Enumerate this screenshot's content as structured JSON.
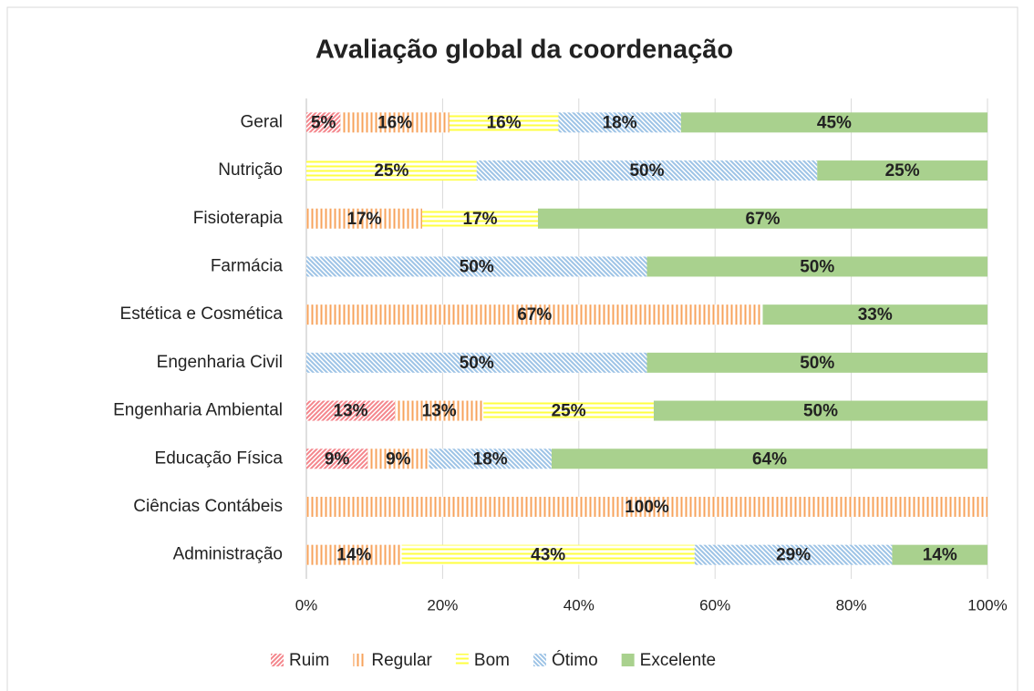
{
  "chart_data": {
    "type": "stacked-bar",
    "orientation": "horizontal",
    "title": "Avaliação global da coordenação",
    "categories": [
      "Geral",
      "Nutrição",
      "Fisioterapia",
      "Farmácia",
      "Estética e Cosmética",
      "Engenharia Civil",
      "Engenharia Ambiental",
      "Educação Física",
      "Ciências Contábeis",
      "Administração"
    ],
    "series": [
      {
        "name": "Ruim",
        "color": "#f4868c",
        "pattern": "diagonal-up",
        "values": [
          5,
          null,
          null,
          null,
          null,
          null,
          13,
          9,
          null,
          null
        ],
        "value_labels": [
          "5%",
          null,
          null,
          null,
          null,
          null,
          "13%",
          "9%",
          null,
          null
        ]
      },
      {
        "name": "Regular",
        "color": "#f7a35c",
        "pattern": "vertical",
        "values": [
          16,
          null,
          17,
          null,
          67,
          null,
          13,
          9,
          100,
          14
        ],
        "value_labels": [
          "16%",
          null,
          "17%",
          null,
          "67%",
          null,
          "13%",
          "9%",
          "100%",
          "14%"
        ]
      },
      {
        "name": "Bom",
        "color": "#ffff40",
        "pattern": "horizontal",
        "values": [
          16,
          25,
          17,
          null,
          null,
          null,
          25,
          null,
          null,
          43
        ],
        "value_labels": [
          "16%",
          "25%",
          "17%",
          null,
          null,
          null,
          "25%",
          null,
          null,
          "43%"
        ]
      },
      {
        "name": "Ótimo",
        "color": "#9dc3e6",
        "pattern": "diagonal-down",
        "values": [
          18,
          50,
          null,
          50,
          null,
          50,
          null,
          18,
          null,
          29
        ],
        "value_labels": [
          "18%",
          "50%",
          null,
          "50%",
          null,
          "50%",
          null,
          "18%",
          null,
          "29%"
        ]
      },
      {
        "name": "Excelente",
        "color": "#a9d18e",
        "pattern": "solid",
        "values": [
          45,
          25,
          67,
          50,
          33,
          50,
          50,
          64,
          null,
          14
        ],
        "value_labels": [
          "45%",
          "25%",
          "67%",
          "50%",
          "33%",
          "50%",
          "50%",
          "64%",
          null,
          "14%"
        ]
      }
    ],
    "xlim": [
      0,
      100
    ],
    "xticks": [
      {
        "value": 0,
        "label": "0%"
      },
      {
        "value": 20,
        "label": "20%"
      },
      {
        "value": 40,
        "label": "40%"
      },
      {
        "value": 60,
        "label": "60%"
      },
      {
        "value": 80,
        "label": "80%"
      },
      {
        "value": 100,
        "label": "100%"
      }
    ],
    "grid": true,
    "legend": "bottom"
  }
}
